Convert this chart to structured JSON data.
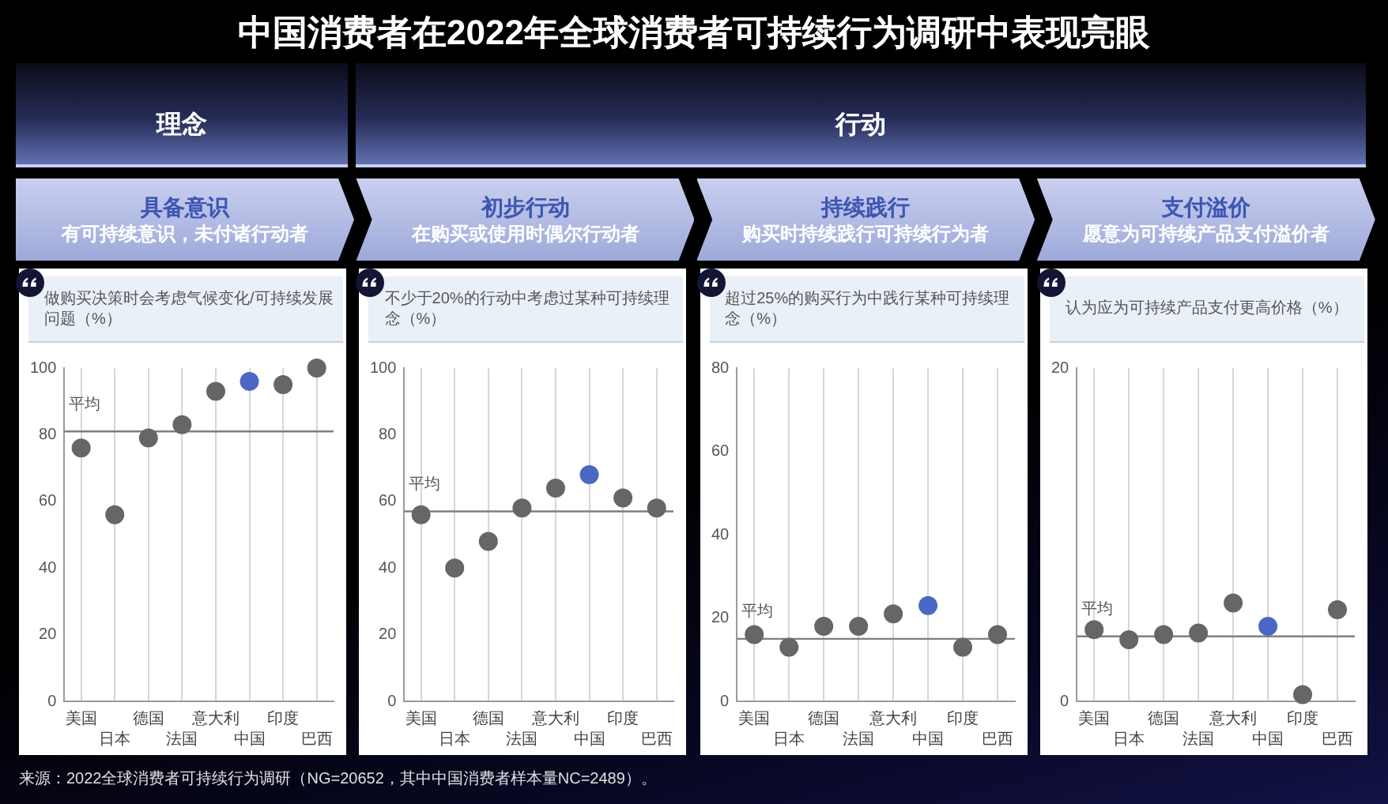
{
  "chart_data": [
    {
      "type": "other",
      "title": "中国消费者在2022年全球消费者可持续行为调研中表现亮眼",
      "annotations": [
        "理念",
        "行动"
      ]
    },
    {
      "type": "scatter",
      "title": "具备意识",
      "subtitle": "有可持续意识，未付诸行动者",
      "ylabel": "做购买决策时会考虑气候变化/可持续发展问题（%）",
      "categories": [
        "美国",
        "日本",
        "德国",
        "法国",
        "意大利",
        "中国",
        "印度",
        "巴西"
      ],
      "values": [
        76,
        56,
        79,
        83,
        93,
        96,
        95,
        100
      ],
      "colors": [
        "#666666",
        "#666666",
        "#666666",
        "#666666",
        "#666666",
        "#4a67c5",
        "#666666",
        "#666666"
      ],
      "ylim": [
        0,
        100
      ],
      "yticks": [
        0,
        20,
        40,
        60,
        80,
        100
      ],
      "grid": "x",
      "marker": "circle",
      "ref_lines": [
        {
          "axis": "y",
          "value": 81,
          "label": "平均",
          "color": "#7f7f7f"
        }
      ]
    },
    {
      "type": "scatter",
      "title": "初步行动",
      "subtitle": "在购买或使用时偶尔行动者",
      "ylabel": "不少于20%的行动中考虑过某种可持续理念（%）",
      "categories": [
        "美国",
        "日本",
        "德国",
        "法国",
        "意大利",
        "中国",
        "印度",
        "巴西"
      ],
      "values": [
        56,
        40,
        48,
        58,
        64,
        68,
        61,
        58
      ],
      "colors": [
        "#666666",
        "#666666",
        "#666666",
        "#666666",
        "#666666",
        "#4a67c5",
        "#666666",
        "#666666"
      ],
      "ylim": [
        0,
        100
      ],
      "yticks": [
        0,
        20,
        40,
        60,
        80,
        100
      ],
      "grid": "x",
      "marker": "circle",
      "ref_lines": [
        {
          "axis": "y",
          "value": 57,
          "label": "平均",
          "color": "#7f7f7f"
        }
      ]
    },
    {
      "type": "scatter",
      "title": "持续践行",
      "subtitle": "购买时持续践行可持续行为者",
      "ylabel": "超过25%的购买行为中践行某种可持续理念（%）",
      "categories": [
        "美国",
        "日本",
        "德国",
        "法国",
        "意大利",
        "中国",
        "印度",
        "巴西"
      ],
      "values": [
        16,
        13,
        18,
        18,
        21,
        23,
        13,
        16
      ],
      "colors": [
        "#666666",
        "#666666",
        "#666666",
        "#666666",
        "#666666",
        "#4a67c5",
        "#666666",
        "#666666"
      ],
      "ylim": [
        0,
        80
      ],
      "yticks": [
        0,
        20,
        40,
        60,
        80
      ],
      "grid": "x",
      "marker": "circle",
      "ref_lines": [
        {
          "axis": "y",
          "value": 15,
          "label": "平均",
          "color": "#7f7f7f"
        }
      ]
    },
    {
      "type": "scatter",
      "title": "支付溢价",
      "subtitle": "愿意为可持续产品支付溢价者",
      "ylabel": "认为应为可持续产品支付更高价格（%）",
      "categories": [
        "美国",
        "日本",
        "德国",
        "法国",
        "意大利",
        "中国",
        "印度",
        "巴西"
      ],
      "values": [
        4.3,
        3.7,
        4,
        4.1,
        5.9,
        4.5,
        0.4,
        5.5
      ],
      "colors": [
        "#666666",
        "#666666",
        "#666666",
        "#666666",
        "#666666",
        "#4a67c5",
        "#666666",
        "#666666"
      ],
      "ylim": [
        0,
        20
      ],
      "yticks": [
        0,
        20
      ],
      "grid": "x",
      "marker": "circle",
      "ref_lines": [
        {
          "axis": "y",
          "value": 3.9,
          "label": "平均",
          "color": "#7f7f7f"
        }
      ]
    },
    {
      "type": "other",
      "annotations": [
        "来源：2022全球消费者可持续行为调研（NG=20652，其中中国消费者样本量NC=2489）。"
      ]
    }
  ]
}
